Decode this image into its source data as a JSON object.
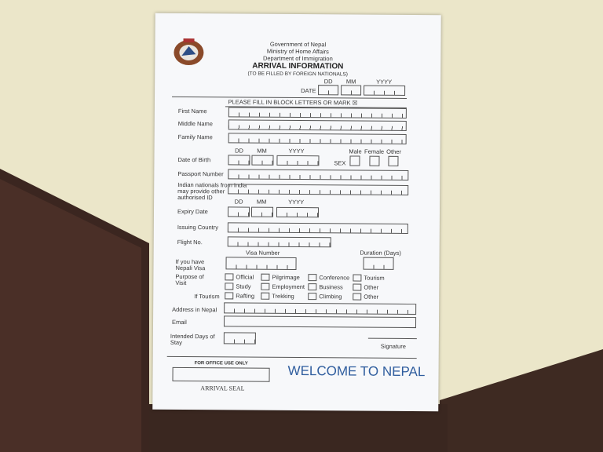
{
  "header": {
    "line1": "Government of Nepal",
    "line2": "Ministry of Home Affairs",
    "line3": "Department of Immigration",
    "title": "ARRIVAL INFORMATION",
    "subtitle": "(TO BE FILLED BY FOREIGN NATIONALS)"
  },
  "date": {
    "label": "DATE",
    "dd": "DD",
    "mm": "MM",
    "yyyy": "YYYY"
  },
  "instruction": "PLEASE FILL IN BLOCK LETTERS OR MARK ☒",
  "fields": {
    "first_name": "First Name",
    "middle_name": "Middle Name",
    "family_name": "Family Name",
    "dob": "Date of Birth",
    "sex": "SEX",
    "male": "Male",
    "female": "Female",
    "other": "Other",
    "passport": "Passport Number",
    "indian_id": "Indian nationals from India may provide other authorised ID",
    "expiry": "Expiry Date",
    "issuing_country": "Issuing Country",
    "flight": "Flight No.",
    "visa_q": "If you have Nepali Visa",
    "visa_number": "Visa Number",
    "duration": "Duration (Days)",
    "purpose": "Purpose of Visit",
    "if_tourism": "If Tourism",
    "address": "Address in Nepal",
    "email": "Email",
    "intended_days": "Intended Days of Stay",
    "signature": "Signature"
  },
  "purpose_options": [
    "Official",
    "Pilgrimage",
    "Conference",
    "Tourism",
    "Study",
    "Employment",
    "Business",
    "Other"
  ],
  "tourism_options": [
    "Rafting",
    "Trekking",
    "Climbing",
    "Other"
  ],
  "office": {
    "label": "FOR OFFICE USE ONLY",
    "seal": "ARRIVAL SEAL"
  },
  "welcome": "WELCOME TO NEPAL",
  "colors": {
    "welcome": "#2f5d9e"
  }
}
